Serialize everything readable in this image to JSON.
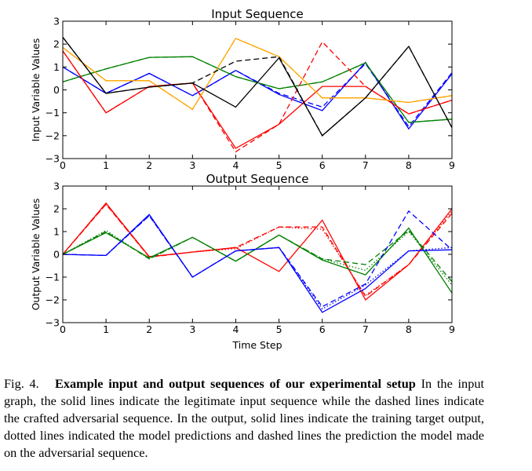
{
  "figure_label": "Fig. 4.",
  "caption_title": "Example input and output sequences of our experimental setup",
  "caption_body": "In the input graph, the solid lines indicate the legitimate input sequence while the dashed lines indicate the crafted adversarial sequence. In the output, solid lines indicate the training target output, dotted lines indicated the model predictions and dashed lines the prediction the model made on the adversarial sequence.",
  "chart_data": [
    {
      "type": "line",
      "title": "Input Sequence",
      "xlabel": "",
      "ylabel": "Input Variable Values",
      "x": [
        0,
        1,
        2,
        3,
        4,
        5,
        6,
        7,
        8,
        9
      ],
      "xlim": [
        0,
        9
      ],
      "ylim": [
        -3,
        3
      ],
      "xticks": [
        "0",
        "1",
        "2",
        "3",
        "4",
        "5",
        "6",
        "7",
        "8",
        "9"
      ],
      "yticks": [
        "3",
        "2",
        "1",
        "0",
        "−1",
        "−2",
        "−3"
      ],
      "grid": false,
      "legend": "none",
      "series": [
        {
          "color": "#0000ff",
          "style": "solid",
          "values": [
            1.0,
            -0.15,
            0.72,
            -0.25,
            0.85,
            -0.2,
            -0.9,
            1.2,
            -1.7,
            0.7
          ]
        },
        {
          "color": "#0000ff",
          "style": "dashed",
          "values": [
            1.0,
            -0.15,
            0.72,
            -0.25,
            0.85,
            -0.15,
            -0.75,
            1.15,
            -1.6,
            0.75
          ]
        },
        {
          "color": "#008000",
          "style": "solid",
          "values": [
            0.35,
            0.92,
            1.42,
            1.45,
            0.58,
            0.05,
            0.35,
            1.18,
            -1.42,
            -1.28
          ]
        },
        {
          "color": "#008000",
          "style": "dashed",
          "values": [
            0.35,
            0.92,
            1.42,
            1.45,
            0.58,
            0.05,
            0.35,
            1.18,
            -1.42,
            -1.28
          ]
        },
        {
          "color": "#ff0000",
          "style": "solid",
          "values": [
            1.7,
            -1.0,
            0.15,
            0.3,
            -2.55,
            -1.5,
            0.15,
            0.15,
            -1.05,
            -0.45
          ]
        },
        {
          "color": "#ff0000",
          "style": "dashed",
          "values": [
            1.7,
            -1.0,
            0.15,
            0.3,
            -2.7,
            -1.5,
            2.1,
            0.15,
            -1.05,
            -0.45
          ]
        },
        {
          "color": "#ffa500",
          "style": "solid",
          "values": [
            1.85,
            0.4,
            0.4,
            -0.85,
            2.25,
            1.45,
            -0.35,
            -0.35,
            -0.55,
            -0.25
          ]
        },
        {
          "color": "#ffa500",
          "style": "dashed",
          "values": [
            1.85,
            0.4,
            0.4,
            -0.85,
            2.25,
            1.45,
            -0.35,
            -0.35,
            -0.55,
            -0.25
          ]
        },
        {
          "color": "#000000",
          "style": "solid",
          "values": [
            2.3,
            -0.15,
            0.12,
            0.3,
            -0.75,
            1.4,
            -2.0,
            -0.35,
            1.9,
            -1.65
          ]
        },
        {
          "color": "#000000",
          "style": "dashed",
          "values": [
            2.3,
            -0.15,
            0.12,
            0.3,
            1.25,
            1.45,
            -2.0,
            -0.35,
            1.9,
            -1.65
          ]
        }
      ]
    },
    {
      "type": "line",
      "title": "Output Sequence",
      "xlabel": "Time Step",
      "ylabel": "Output Variable Values",
      "x": [
        0,
        1,
        2,
        3,
        4,
        5,
        6,
        7,
        8,
        9
      ],
      "xlim": [
        0,
        9
      ],
      "ylim": [
        -3,
        3
      ],
      "xticks": [
        "0",
        "1",
        "2",
        "3",
        "4",
        "5",
        "6",
        "7",
        "8",
        "9"
      ],
      "yticks": [
        "3",
        "2",
        "1",
        "0",
        "−1",
        "−2",
        "−3"
      ],
      "grid": false,
      "legend": "none",
      "series": [
        {
          "color": "#ff0000",
          "style": "solid",
          "values": [
            0.0,
            2.25,
            -0.1,
            0.1,
            0.3,
            -0.75,
            1.5,
            -2.0,
            -0.45,
            2.0
          ]
        },
        {
          "color": "#ff0000",
          "style": "dotted",
          "values": [
            0.0,
            2.2,
            -0.12,
            0.1,
            0.25,
            1.2,
            1.1,
            -1.8,
            -0.45,
            1.9
          ]
        },
        {
          "color": "#ff0000",
          "style": "dashed",
          "values": [
            0.0,
            2.2,
            -0.12,
            0.1,
            0.3,
            1.2,
            1.2,
            -1.85,
            -0.45,
            1.8
          ]
        },
        {
          "color": "#008000",
          "style": "solid",
          "values": [
            0.0,
            0.95,
            -0.15,
            0.75,
            -0.3,
            0.85,
            -0.25,
            -0.9,
            1.15,
            -1.7
          ]
        },
        {
          "color": "#008000",
          "style": "dotted",
          "values": [
            0.0,
            1.05,
            -0.2,
            0.75,
            -0.3,
            0.85,
            -0.2,
            -0.7,
            1.0,
            -1.35
          ]
        },
        {
          "color": "#008000",
          "style": "dashed",
          "values": [
            0.0,
            1.0,
            -0.2,
            0.75,
            -0.3,
            0.85,
            -0.2,
            -0.45,
            1.05,
            -1.2
          ]
        },
        {
          "color": "#0000ff",
          "style": "solid",
          "values": [
            0.0,
            -0.05,
            1.75,
            -1.0,
            0.15,
            0.3,
            -2.55,
            -1.5,
            0.15,
            0.2
          ]
        },
        {
          "color": "#0000ff",
          "style": "dotted",
          "values": [
            0.0,
            -0.05,
            1.7,
            -1.0,
            0.15,
            0.3,
            -2.4,
            -1.35,
            0.15,
            0.3
          ]
        },
        {
          "color": "#0000ff",
          "style": "dashed",
          "values": [
            0.0,
            -0.05,
            1.7,
            -1.0,
            0.15,
            0.3,
            -2.3,
            -1.3,
            1.9,
            0.2
          ]
        }
      ]
    }
  ]
}
